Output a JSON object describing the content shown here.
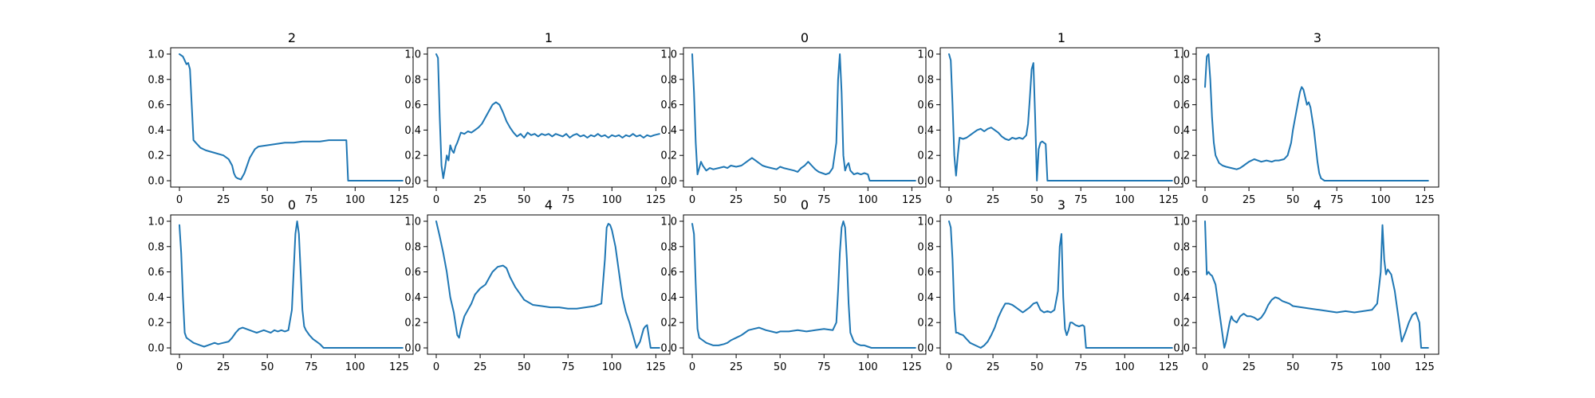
{
  "figure": {
    "line_color": "#1f77b4"
  },
  "chart_data": [
    {
      "type": "line",
      "title": "2",
      "xlim": [
        -5,
        133
      ],
      "ylim": [
        -0.05,
        1.05
      ],
      "x_ticks": [
        0,
        25,
        50,
        75,
        100,
        125
      ],
      "y_ticks": [
        0.0,
        0.2,
        0.4,
        0.6,
        0.8,
        1.0
      ],
      "x": [
        0,
        2,
        4,
        5,
        6,
        7,
        8,
        10,
        12,
        15,
        20,
        25,
        28,
        30,
        31,
        32,
        33,
        35,
        37,
        40,
        43,
        45,
        50,
        55,
        60,
        65,
        70,
        75,
        80,
        85,
        90,
        95,
        96,
        100,
        105,
        110,
        115,
        120,
        127
      ],
      "y": [
        1.0,
        0.98,
        0.92,
        0.93,
        0.88,
        0.6,
        0.32,
        0.29,
        0.26,
        0.24,
        0.22,
        0.2,
        0.17,
        0.12,
        0.06,
        0.03,
        0.02,
        0.01,
        0.06,
        0.18,
        0.25,
        0.27,
        0.28,
        0.29,
        0.3,
        0.3,
        0.31,
        0.31,
        0.31,
        0.32,
        0.32,
        0.32,
        0.0,
        0.0,
        0.0,
        0.0,
        0.0,
        0.0,
        0.0
      ]
    },
    {
      "type": "line",
      "title": "1",
      "xlim": [
        -5,
        133
      ],
      "ylim": [
        -0.05,
        1.05
      ],
      "x_ticks": [
        0,
        25,
        50,
        75,
        100,
        125
      ],
      "y_ticks": [
        0.0,
        0.2,
        0.4,
        0.6,
        0.8,
        1.0
      ],
      "x": [
        0,
        1,
        2,
        3,
        4,
        5,
        6,
        7,
        8,
        9,
        10,
        11,
        12,
        14,
        16,
        18,
        20,
        22,
        24,
        26,
        28,
        30,
        32,
        34,
        36,
        38,
        40,
        42,
        44,
        46,
        48,
        50,
        52,
        54,
        56,
        58,
        60,
        62,
        64,
        66,
        68,
        70,
        72,
        74,
        76,
        78,
        80,
        82,
        84,
        86,
        88,
        90,
        92,
        94,
        96,
        98,
        100,
        102,
        104,
        106,
        108,
        110,
        112,
        114,
        116,
        118,
        120,
        122,
        124,
        127
      ],
      "y": [
        1.0,
        0.97,
        0.5,
        0.12,
        0.02,
        0.1,
        0.2,
        0.16,
        0.28,
        0.24,
        0.22,
        0.27,
        0.3,
        0.38,
        0.37,
        0.39,
        0.38,
        0.4,
        0.42,
        0.45,
        0.5,
        0.55,
        0.6,
        0.62,
        0.6,
        0.54,
        0.47,
        0.42,
        0.38,
        0.35,
        0.37,
        0.34,
        0.38,
        0.36,
        0.37,
        0.35,
        0.37,
        0.36,
        0.37,
        0.35,
        0.37,
        0.36,
        0.35,
        0.37,
        0.34,
        0.36,
        0.37,
        0.35,
        0.36,
        0.34,
        0.36,
        0.35,
        0.37,
        0.35,
        0.36,
        0.34,
        0.36,
        0.35,
        0.36,
        0.34,
        0.36,
        0.35,
        0.37,
        0.35,
        0.36,
        0.34,
        0.36,
        0.35,
        0.36,
        0.37
      ]
    },
    {
      "type": "line",
      "title": "0",
      "xlim": [
        -5,
        133
      ],
      "ylim": [
        -0.05,
        1.05
      ],
      "x_ticks": [
        0,
        25,
        50,
        75,
        100,
        125
      ],
      "y_ticks": [
        0.0,
        0.2,
        0.4,
        0.6,
        0.8,
        1.0
      ],
      "x": [
        0,
        1,
        2,
        3,
        4,
        5,
        6,
        8,
        10,
        12,
        15,
        18,
        20,
        22,
        25,
        28,
        30,
        32,
        34,
        36,
        38,
        40,
        42,
        45,
        48,
        50,
        52,
        55,
        58,
        60,
        62,
        64,
        66,
        68,
        70,
        72,
        74,
        76,
        78,
        80,
        82,
        83,
        84,
        85,
        86,
        87,
        88,
        89,
        90,
        92,
        94,
        96,
        98,
        100,
        101,
        105,
        110,
        115,
        120,
        127
      ],
      "y": [
        1.0,
        0.7,
        0.3,
        0.05,
        0.1,
        0.15,
        0.12,
        0.08,
        0.1,
        0.09,
        0.1,
        0.11,
        0.1,
        0.12,
        0.11,
        0.12,
        0.14,
        0.16,
        0.18,
        0.16,
        0.14,
        0.12,
        0.11,
        0.1,
        0.09,
        0.11,
        0.1,
        0.09,
        0.08,
        0.07,
        0.1,
        0.12,
        0.15,
        0.12,
        0.09,
        0.07,
        0.06,
        0.05,
        0.06,
        0.1,
        0.3,
        0.8,
        1.0,
        0.7,
        0.2,
        0.08,
        0.12,
        0.14,
        0.08,
        0.05,
        0.06,
        0.05,
        0.06,
        0.05,
        0.0,
        0.0,
        0.0,
        0.0,
        0.0,
        0.0
      ]
    },
    {
      "type": "line",
      "title": "1",
      "xlim": [
        -5,
        133
      ],
      "ylim": [
        -0.05,
        1.05
      ],
      "x_ticks": [
        0,
        25,
        50,
        75,
        100,
        125
      ],
      "y_ticks": [
        0.0,
        0.2,
        0.4,
        0.6,
        0.8,
        1.0
      ],
      "x": [
        0,
        1,
        2,
        3,
        4,
        5,
        6,
        8,
        10,
        12,
        14,
        16,
        18,
        20,
        22,
        24,
        26,
        28,
        30,
        32,
        34,
        36,
        38,
        40,
        42,
        44,
        45,
        46,
        47,
        48,
        49,
        50,
        51,
        52,
        53,
        54,
        55,
        56,
        60,
        70,
        80,
        90,
        100,
        110,
        120,
        127
      ],
      "y": [
        1.0,
        0.95,
        0.6,
        0.2,
        0.04,
        0.2,
        0.34,
        0.33,
        0.34,
        0.36,
        0.38,
        0.4,
        0.41,
        0.39,
        0.41,
        0.42,
        0.4,
        0.38,
        0.35,
        0.33,
        0.32,
        0.34,
        0.33,
        0.34,
        0.33,
        0.36,
        0.45,
        0.65,
        0.88,
        0.93,
        0.5,
        0.0,
        0.25,
        0.3,
        0.31,
        0.3,
        0.29,
        0.0,
        0.0,
        0.0,
        0.0,
        0.0,
        0.0,
        0.0,
        0.0,
        0.0
      ]
    },
    {
      "type": "line",
      "title": "3",
      "xlim": [
        -5,
        133
      ],
      "ylim": [
        -0.05,
        1.05
      ],
      "x_ticks": [
        0,
        25,
        50,
        75,
        100,
        125
      ],
      "y_ticks": [
        0.0,
        0.2,
        0.4,
        0.6,
        0.8,
        1.0
      ],
      "x": [
        0,
        1,
        2,
        3,
        4,
        5,
        6,
        8,
        10,
        12,
        15,
        18,
        20,
        22,
        25,
        28,
        30,
        32,
        35,
        38,
        40,
        42,
        45,
        47,
        49,
        50,
        52,
        54,
        55,
        56,
        57,
        58,
        59,
        60,
        62,
        64,
        65,
        66,
        67,
        68,
        70,
        75,
        80,
        90,
        100,
        110,
        120,
        127
      ],
      "y": [
        0.74,
        0.98,
        1.0,
        0.8,
        0.5,
        0.3,
        0.2,
        0.14,
        0.12,
        0.11,
        0.1,
        0.09,
        0.1,
        0.12,
        0.15,
        0.17,
        0.16,
        0.15,
        0.16,
        0.15,
        0.16,
        0.16,
        0.17,
        0.2,
        0.3,
        0.4,
        0.55,
        0.7,
        0.74,
        0.72,
        0.66,
        0.6,
        0.62,
        0.58,
        0.4,
        0.15,
        0.06,
        0.02,
        0.01,
        0.0,
        0.0,
        0.0,
        0.0,
        0.0,
        0.0,
        0.0,
        0.0,
        0.0
      ]
    },
    {
      "type": "line",
      "title": "0",
      "xlim": [
        -5,
        133
      ],
      "ylim": [
        -0.05,
        1.05
      ],
      "x_ticks": [
        0,
        25,
        50,
        75,
        100,
        125
      ],
      "y_ticks": [
        0.0,
        0.2,
        0.4,
        0.6,
        0.8,
        1.0
      ],
      "x": [
        0,
        1,
        2,
        3,
        4,
        6,
        8,
        10,
        12,
        14,
        16,
        18,
        20,
        22,
        25,
        28,
        30,
        32,
        34,
        36,
        38,
        40,
        42,
        44,
        46,
        48,
        50,
        52,
        54,
        56,
        58,
        60,
        62,
        64,
        65,
        66,
        67,
        68,
        69,
        70,
        71,
        72,
        74,
        76,
        78,
        80,
        82,
        85,
        90,
        95,
        100,
        105,
        110,
        115,
        120,
        127
      ],
      "y": [
        0.97,
        0.75,
        0.4,
        0.12,
        0.08,
        0.06,
        0.04,
        0.03,
        0.02,
        0.01,
        0.02,
        0.03,
        0.04,
        0.03,
        0.04,
        0.05,
        0.08,
        0.12,
        0.15,
        0.16,
        0.15,
        0.14,
        0.13,
        0.12,
        0.13,
        0.14,
        0.13,
        0.12,
        0.14,
        0.13,
        0.14,
        0.13,
        0.14,
        0.3,
        0.6,
        0.9,
        1.0,
        0.9,
        0.6,
        0.3,
        0.17,
        0.14,
        0.1,
        0.07,
        0.05,
        0.03,
        0.0,
        0.0,
        0.0,
        0.0,
        0.0,
        0.0,
        0.0,
        0.0,
        0.0,
        0.0
      ]
    },
    {
      "type": "line",
      "title": "4",
      "xlim": [
        -5,
        133
      ],
      "ylim": [
        -0.05,
        1.05
      ],
      "x_ticks": [
        0,
        25,
        50,
        75,
        100,
        125
      ],
      "y_ticks": [
        0.0,
        0.2,
        0.4,
        0.6,
        0.8,
        1.0
      ],
      "x": [
        0,
        2,
        4,
        6,
        8,
        10,
        12,
        13,
        14,
        16,
        18,
        20,
        22,
        25,
        28,
        30,
        32,
        35,
        38,
        40,
        42,
        45,
        48,
        50,
        55,
        60,
        65,
        70,
        75,
        80,
        85,
        90,
        94,
        96,
        97,
        98,
        99,
        100,
        102,
        104,
        106,
        108,
        110,
        112,
        114,
        116,
        118,
        119,
        120,
        122,
        124,
        127
      ],
      "y": [
        1.0,
        0.88,
        0.75,
        0.6,
        0.4,
        0.28,
        0.1,
        0.08,
        0.15,
        0.25,
        0.3,
        0.35,
        0.42,
        0.47,
        0.5,
        0.55,
        0.6,
        0.64,
        0.65,
        0.63,
        0.56,
        0.48,
        0.42,
        0.38,
        0.34,
        0.33,
        0.32,
        0.32,
        0.31,
        0.31,
        0.32,
        0.33,
        0.35,
        0.7,
        0.95,
        0.98,
        0.97,
        0.93,
        0.8,
        0.6,
        0.4,
        0.28,
        0.2,
        0.1,
        0.0,
        0.05,
        0.15,
        0.17,
        0.18,
        0.0,
        0.0,
        0.0
      ]
    },
    {
      "type": "line",
      "title": "0",
      "xlim": [
        -5,
        133
      ],
      "ylim": [
        -0.05,
        1.05
      ],
      "x_ticks": [
        0,
        25,
        50,
        75,
        100,
        125
      ],
      "y_ticks": [
        0.0,
        0.2,
        0.4,
        0.6,
        0.8,
        1.0
      ],
      "x": [
        0,
        1,
        2,
        3,
        4,
        6,
        8,
        10,
        12,
        15,
        18,
        20,
        22,
        25,
        28,
        30,
        32,
        35,
        38,
        40,
        42,
        45,
        48,
        50,
        55,
        60,
        65,
        70,
        75,
        80,
        82,
        83,
        84,
        85,
        86,
        87,
        88,
        89,
        90,
        92,
        94,
        96,
        98,
        100,
        102,
        105,
        110,
        115,
        120,
        127
      ],
      "y": [
        0.98,
        0.9,
        0.5,
        0.15,
        0.08,
        0.06,
        0.04,
        0.03,
        0.02,
        0.02,
        0.03,
        0.04,
        0.06,
        0.08,
        0.1,
        0.12,
        0.14,
        0.15,
        0.16,
        0.15,
        0.14,
        0.13,
        0.12,
        0.13,
        0.13,
        0.14,
        0.13,
        0.14,
        0.15,
        0.14,
        0.2,
        0.45,
        0.75,
        0.95,
        1.0,
        0.95,
        0.7,
        0.35,
        0.12,
        0.05,
        0.03,
        0.02,
        0.02,
        0.01,
        0.0,
        0.0,
        0.0,
        0.0,
        0.0,
        0.0
      ]
    },
    {
      "type": "line",
      "title": "3",
      "xlim": [
        -5,
        133
      ],
      "ylim": [
        -0.05,
        1.05
      ],
      "x_ticks": [
        0,
        25,
        50,
        75,
        100,
        125
      ],
      "y_ticks": [
        0.0,
        0.2,
        0.4,
        0.6,
        0.8,
        1.0
      ],
      "x": [
        0,
        1,
        2,
        3,
        4,
        5,
        6,
        8,
        10,
        12,
        15,
        18,
        20,
        22,
        24,
        26,
        28,
        30,
        32,
        34,
        36,
        38,
        40,
        42,
        44,
        46,
        48,
        50,
        52,
        54,
        56,
        58,
        60,
        62,
        63,
        64,
        65,
        66,
        67,
        68,
        69,
        70,
        72,
        74,
        76,
        77,
        78,
        80,
        90,
        100,
        110,
        120,
        127
      ],
      "y": [
        1.0,
        0.95,
        0.7,
        0.3,
        0.12,
        0.12,
        0.11,
        0.1,
        0.07,
        0.04,
        0.02,
        0.0,
        0.02,
        0.05,
        0.1,
        0.16,
        0.24,
        0.3,
        0.35,
        0.35,
        0.34,
        0.32,
        0.3,
        0.28,
        0.3,
        0.32,
        0.35,
        0.36,
        0.3,
        0.28,
        0.29,
        0.28,
        0.3,
        0.45,
        0.8,
        0.9,
        0.4,
        0.15,
        0.1,
        0.14,
        0.2,
        0.2,
        0.18,
        0.17,
        0.18,
        0.17,
        0.0,
        0.0,
        0.0,
        0.0,
        0.0,
        0.0,
        0.0
      ]
    },
    {
      "type": "line",
      "title": "4",
      "xlim": [
        -5,
        133
      ],
      "ylim": [
        -0.05,
        1.05
      ],
      "x_ticks": [
        0,
        25,
        50,
        75,
        100,
        125
      ],
      "y_ticks": [
        0.0,
        0.2,
        0.4,
        0.6,
        0.8,
        1.0
      ],
      "x": [
        0,
        1,
        2,
        3,
        4,
        6,
        8,
        10,
        11,
        12,
        14,
        15,
        16,
        18,
        20,
        22,
        24,
        26,
        28,
        30,
        32,
        34,
        36,
        38,
        40,
        42,
        44,
        46,
        48,
        50,
        55,
        60,
        65,
        70,
        75,
        80,
        85,
        90,
        95,
        98,
        100,
        101,
        102,
        103,
        104,
        106,
        108,
        110,
        112,
        114,
        116,
        118,
        120,
        122,
        123,
        124,
        127
      ],
      "y": [
        1.0,
        0.58,
        0.6,
        0.58,
        0.57,
        0.5,
        0.3,
        0.1,
        0.0,
        0.05,
        0.2,
        0.25,
        0.22,
        0.2,
        0.25,
        0.27,
        0.25,
        0.25,
        0.24,
        0.22,
        0.24,
        0.28,
        0.34,
        0.38,
        0.4,
        0.39,
        0.37,
        0.36,
        0.35,
        0.33,
        0.32,
        0.31,
        0.3,
        0.29,
        0.28,
        0.29,
        0.28,
        0.29,
        0.3,
        0.35,
        0.6,
        0.97,
        0.7,
        0.58,
        0.62,
        0.58,
        0.45,
        0.25,
        0.05,
        0.12,
        0.2,
        0.26,
        0.28,
        0.2,
        0.0,
        0.0,
        0.0
      ]
    }
  ]
}
